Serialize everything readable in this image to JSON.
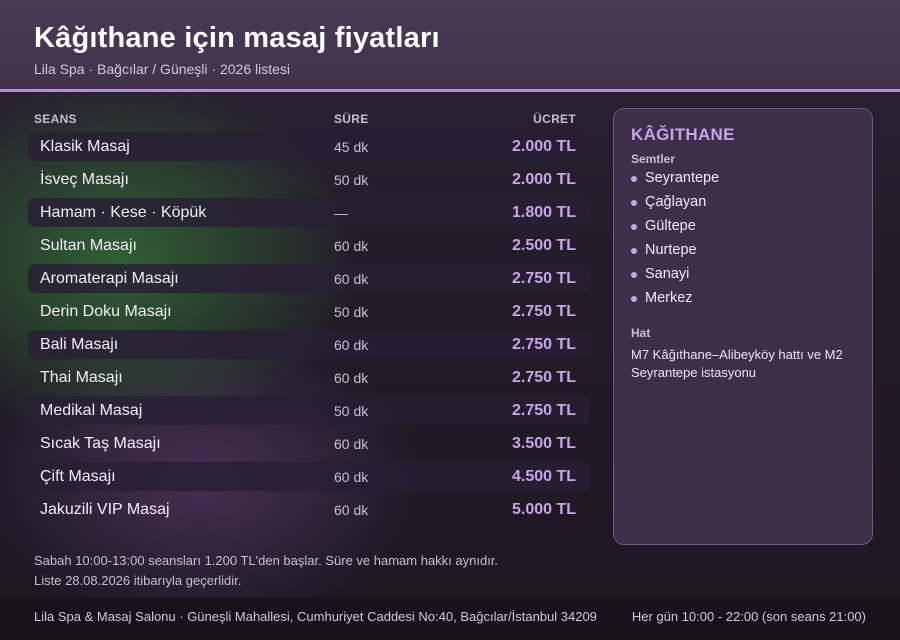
{
  "header": {
    "title": "Kâğıthane için masaj fiyatları",
    "subtitle": "Lila Spa · Bağcılar / Güneşli · 2026 listesi"
  },
  "table": {
    "columns": [
      "SEANS",
      "SÜRE",
      "ÜCRET"
    ],
    "rows": [
      {
        "name": "Klasik Masaj",
        "duration": "45 dk",
        "price": "2.000 TL"
      },
      {
        "name": "İsveç Masajı",
        "duration": "50 dk",
        "price": "2.000 TL"
      },
      {
        "name": "Hamam · Kese · Köpük",
        "duration": "—",
        "price": "1.800 TL"
      },
      {
        "name": "Sultan Masajı",
        "duration": "60 dk",
        "price": "2.500 TL"
      },
      {
        "name": "Aromaterapi Masajı",
        "duration": "60 dk",
        "price": "2.750 TL"
      },
      {
        "name": "Derin Doku Masajı",
        "duration": "50 dk",
        "price": "2.750 TL"
      },
      {
        "name": "Bali Masajı",
        "duration": "60 dk",
        "price": "2.750 TL"
      },
      {
        "name": "Thai Masajı",
        "duration": "60 dk",
        "price": "2.750 TL"
      },
      {
        "name": "Medikal Masaj",
        "duration": "50 dk",
        "price": "2.750 TL"
      },
      {
        "name": "Sıcak Taş Masajı",
        "duration": "60 dk",
        "price": "3.500 TL"
      },
      {
        "name": "Çift Masajı",
        "duration": "60 dk",
        "price": "4.500 TL"
      },
      {
        "name": "Jakuzili VIP Masaj",
        "duration": "60 dk",
        "price": "5.000 TL"
      }
    ]
  },
  "panel": {
    "title": "KÂĞITHANE",
    "districts_label": "Semtler",
    "districts": [
      "Seyrantepe",
      "Çağlayan",
      "Gültepe",
      "Nurtepe",
      "Sanayi",
      "Merkez"
    ],
    "line_label": "Hat",
    "line_text": "M7 Kâğıthane–Alibeyköy hattı ve M2 Seyrantepe istasyonu"
  },
  "notes": [
    "Sabah 10:00-13:00 seansları 1.200 TL'den başlar. Süre ve hamam hakkı aynıdır.",
    "Liste 28.08.2026 itibarıyla geçerlidir."
  ],
  "footer": {
    "address": "Lila Spa & Masaj Salonu · Güneşli Mahallesi, Cumhuriyet Caddesi No:40, Bağcılar/İstanbul 34209",
    "hours": "Her gün 10:00 - 22:00 (son seans 21:00)"
  }
}
